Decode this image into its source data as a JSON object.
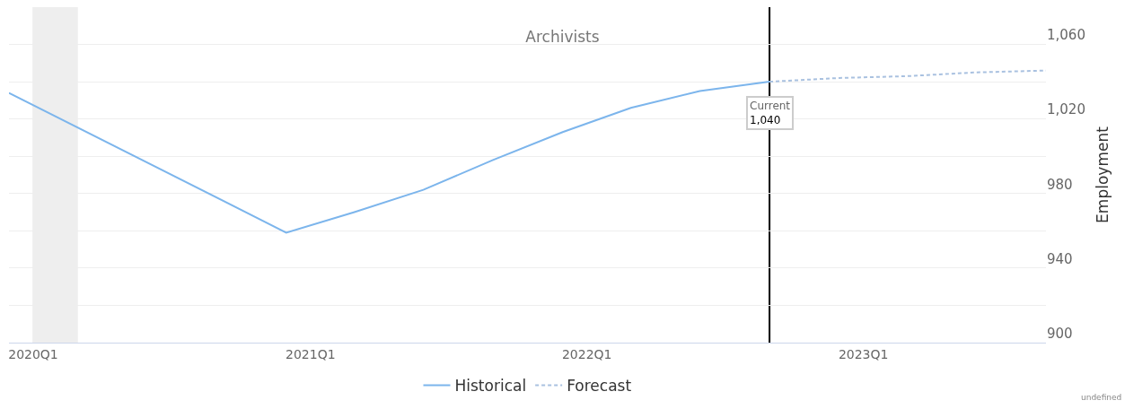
{
  "chart_data": {
    "type": "line",
    "title": "Archivists",
    "ylabel": "Employment",
    "x": [
      "2020-01",
      "2020-04",
      "2020-07",
      "2020-10",
      "2021-01",
      "2021-04",
      "2021-07",
      "2021-10",
      "2022-01",
      "2022-04",
      "2022-07",
      "2022-10",
      "2023-01",
      "2023-04",
      "2023-07",
      "2023-10"
    ],
    "series": [
      {
        "name": "Historical",
        "color": "#7cb5ec",
        "line_style": "solid",
        "values": [
          1034,
          null,
          null,
          null,
          959,
          970,
          982,
          998,
          1013,
          1026,
          1035,
          1040,
          null,
          null,
          null,
          null
        ]
      },
      {
        "name": "Forecast",
        "color": "#a9c1e0",
        "line_style": "dashed",
        "values": [
          null,
          null,
          null,
          null,
          null,
          null,
          null,
          null,
          null,
          null,
          null,
          1040,
          1042,
          1043,
          1045,
          1046
        ]
      }
    ],
    "xlim": [
      "2020-01",
      "2023-10"
    ],
    "xticks": [
      {
        "value": "2020-02-02",
        "label": "2020Q1"
      },
      {
        "value": "2021-02-02",
        "label": "2021Q1"
      },
      {
        "value": "2022-02-02",
        "label": "2022Q1"
      },
      {
        "value": "2023-02-02",
        "label": "2023Q1"
      }
    ],
    "ylim": [
      900,
      1080
    ],
    "yticks": [
      900,
      {
        "value": 920,
        "label": null
      },
      940,
      {
        "value": 960,
        "label": null
      },
      980,
      {
        "value": 1000,
        "label": null
      },
      {
        "value": 1020,
        "label": "1,020"
      },
      {
        "value": 1040,
        "label": null
      },
      {
        "value": 1060,
        "label": "1,060"
      }
    ],
    "bands": [
      {
        "axis": "x",
        "from": "2020-02",
        "to": "2020-04",
        "color": "#eeeeee"
      }
    ],
    "ref_lines": [
      {
        "axis": "x",
        "value": "2022-10",
        "label": "Current\n1,040",
        "color": "#000000"
      }
    ],
    "annotations": [
      "undefined"
    ],
    "grid": "y",
    "legend": "bottom",
    "marker": "none"
  }
}
